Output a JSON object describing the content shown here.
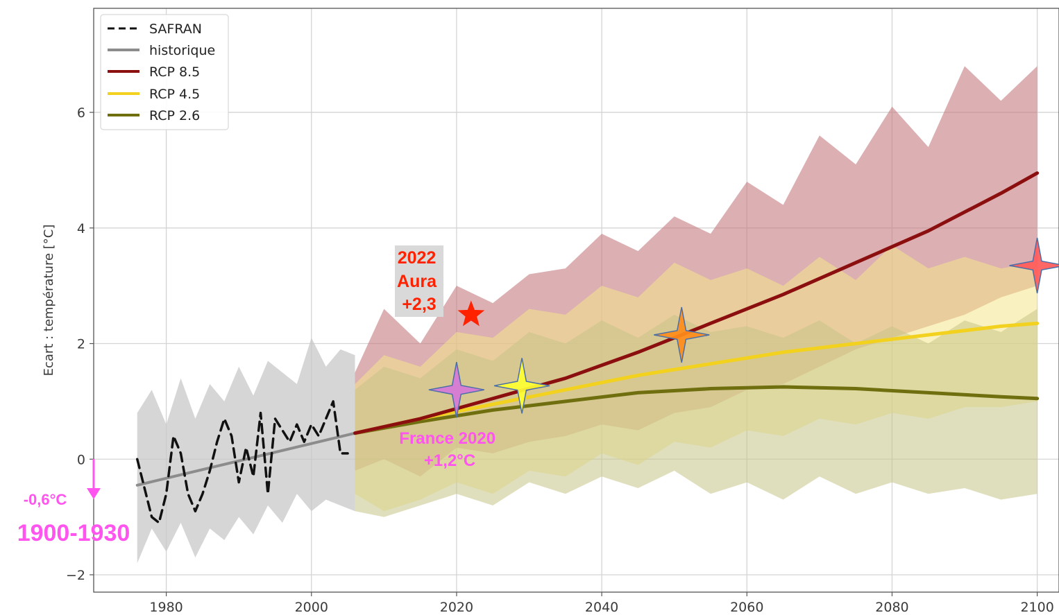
{
  "chart_data": {
    "type": "line",
    "title": "",
    "xlabel": "",
    "ylabel": "Ecart : température [°C]",
    "xlim": [
      1970,
      2103
    ],
    "ylim": [
      -2.3,
      7.8
    ],
    "x_ticks": [
      1980,
      2000,
      2020,
      2040,
      2060,
      2080,
      2100
    ],
    "y_ticks": [
      -2,
      0,
      2,
      4,
      6
    ],
    "x_tick_labels": [
      "1980",
      "2000",
      "2020",
      "2040",
      "2060",
      "2080",
      "2100"
    ],
    "y_tick_labels": [
      "−2",
      "0",
      "2",
      "4",
      "6"
    ],
    "grid": true,
    "legend_position": "top-left",
    "legend": [
      "SAFRAN",
      "historique",
      "RCP 8.5",
      "RCP 4.5",
      "RCP 2.6"
    ],
    "colors": {
      "safran": "#111111",
      "historique": "#8c8c8c",
      "rcp85": "#8b0f0f",
      "rcp45": "#f2d21e",
      "rcp26": "#6f6f10",
      "band_hist": "#c8c8c8",
      "band_85": "#c47a7e",
      "band_45": "#f4e58a",
      "band_26": "#c7c486",
      "annotation_magenta": "#ff55ee",
      "annotation_red": "#ff2200"
    },
    "series": [
      {
        "name": "SAFRAN",
        "style": "dashed",
        "x": [
          1976,
          1977,
          1978,
          1979,
          1980,
          1981,
          1982,
          1983,
          1984,
          1985,
          1986,
          1987,
          1988,
          1989,
          1990,
          1991,
          1992,
          1993,
          1994,
          1995,
          1996,
          1997,
          1998,
          1999,
          2000,
          2001,
          2002,
          2003,
          2004,
          2005
        ],
        "y": [
          0.0,
          -0.5,
          -1.0,
          -1.1,
          -0.6,
          0.4,
          0.1,
          -0.6,
          -0.9,
          -0.6,
          -0.2,
          0.3,
          0.7,
          0.4,
          -0.4,
          0.2,
          -0.3,
          0.8,
          -0.6,
          0.7,
          0.5,
          0.3,
          0.6,
          0.3,
          0.6,
          0.4,
          0.7,
          1.0,
          0.1,
          0.1
        ]
      },
      {
        "name": "historique",
        "x": [
          1976,
          2006
        ],
        "y": [
          -0.45,
          0.45
        ],
        "band_x": [
          1976,
          1978,
          1980,
          1982,
          1984,
          1986,
          1988,
          1990,
          1992,
          1994,
          1996,
          1998,
          2000,
          2002,
          2004,
          2006
        ],
        "band_upper": [
          0.8,
          1.2,
          0.6,
          1.4,
          0.7,
          1.3,
          1.0,
          1.6,
          1.1,
          1.7,
          1.5,
          1.3,
          2.1,
          1.6,
          1.9,
          1.8
        ],
        "band_lower": [
          -1.8,
          -1.2,
          -1.6,
          -1.1,
          -1.7,
          -1.2,
          -1.4,
          -1.0,
          -1.3,
          -0.8,
          -1.1,
          -0.6,
          -0.9,
          -0.7,
          -0.8,
          -0.9
        ]
      },
      {
        "name": "RCP 8.5",
        "x": [
          2006,
          2015,
          2025,
          2035,
          2045,
          2055,
          2065,
          2075,
          2085,
          2095,
          2100
        ],
        "y": [
          0.45,
          0.7,
          1.05,
          1.4,
          1.85,
          2.35,
          2.85,
          3.4,
          3.95,
          4.6,
          4.95
        ],
        "band_x": [
          2006,
          2010,
          2015,
          2020,
          2025,
          2030,
          2035,
          2040,
          2045,
          2050,
          2055,
          2060,
          2065,
          2070,
          2075,
          2080,
          2085,
          2090,
          2095,
          2100
        ],
        "band_upper": [
          1.5,
          2.6,
          2.0,
          3.0,
          2.7,
          3.2,
          3.3,
          3.9,
          3.6,
          4.2,
          3.9,
          4.8,
          4.4,
          5.6,
          5.1,
          6.1,
          5.4,
          6.8,
          6.2,
          6.8
        ],
        "band_lower": [
          -0.2,
          0.0,
          -0.3,
          0.2,
          0.1,
          0.3,
          0.4,
          0.6,
          0.5,
          0.8,
          0.9,
          1.2,
          1.3,
          1.6,
          1.9,
          2.1,
          2.3,
          2.5,
          2.8,
          3.0
        ]
      },
      {
        "name": "RCP 4.5",
        "x": [
          2006,
          2015,
          2025,
          2035,
          2045,
          2055,
          2065,
          2075,
          2085,
          2095,
          2100
        ],
        "y": [
          0.45,
          0.7,
          0.95,
          1.2,
          1.45,
          1.65,
          1.85,
          2.0,
          2.15,
          2.3,
          2.35
        ],
        "band_x": [
          2006,
          2010,
          2015,
          2020,
          2025,
          2030,
          2035,
          2040,
          2045,
          2050,
          2055,
          2060,
          2065,
          2070,
          2075,
          2080,
          2085,
          2090,
          2095,
          2100
        ],
        "band_upper": [
          1.3,
          1.8,
          1.6,
          2.2,
          2.1,
          2.6,
          2.5,
          3.0,
          2.8,
          3.4,
          3.1,
          3.3,
          3.0,
          3.5,
          3.1,
          3.7,
          3.3,
          3.5,
          3.3,
          3.4
        ],
        "band_lower": [
          -0.6,
          -0.9,
          -0.7,
          -0.4,
          -0.6,
          -0.2,
          -0.3,
          0.1,
          -0.1,
          0.3,
          0.2,
          0.5,
          0.4,
          0.7,
          0.6,
          0.8,
          0.7,
          0.9,
          0.9,
          1.0
        ]
      },
      {
        "name": "RCP 2.6",
        "x": [
          2006,
          2015,
          2025,
          2035,
          2045,
          2055,
          2065,
          2075,
          2085,
          2095,
          2100
        ],
        "y": [
          0.45,
          0.65,
          0.85,
          1.0,
          1.15,
          1.22,
          1.25,
          1.22,
          1.15,
          1.08,
          1.05
        ],
        "band_x": [
          2006,
          2010,
          2015,
          2020,
          2025,
          2030,
          2035,
          2040,
          2045,
          2050,
          2055,
          2060,
          2065,
          2070,
          2075,
          2080,
          2085,
          2090,
          2095,
          2100
        ],
        "band_upper": [
          1.2,
          1.6,
          1.4,
          1.9,
          1.7,
          2.2,
          2.0,
          2.4,
          2.1,
          2.5,
          2.2,
          2.3,
          2.1,
          2.4,
          2.0,
          2.3,
          2.0,
          2.4,
          2.2,
          2.6
        ],
        "band_lower": [
          -0.9,
          -1.0,
          -0.8,
          -0.6,
          -0.8,
          -0.4,
          -0.6,
          -0.3,
          -0.5,
          -0.2,
          -0.6,
          -0.4,
          -0.7,
          -0.3,
          -0.6,
          -0.4,
          -0.6,
          -0.5,
          -0.7,
          -0.6
        ]
      }
    ],
    "markers": [
      {
        "shape": "star5",
        "x": 2022,
        "y": 2.5,
        "color": "#ff2200"
      },
      {
        "shape": "star4",
        "x": 2020,
        "y": 1.2,
        "color": "#d678d8"
      },
      {
        "shape": "star4",
        "x": 2029,
        "y": 1.27,
        "color": "#ffff33"
      },
      {
        "shape": "star4",
        "x": 2051,
        "y": 2.15,
        "color": "#ff8c1a"
      },
      {
        "shape": "star4",
        "x": 2100,
        "y": 3.35,
        "color": "#ff5a5a"
      }
    ],
    "annotations": {
      "aura": [
        "2022",
        "Aura",
        "+2,3"
      ],
      "france": [
        "France 2020",
        "+1,2°C"
      ],
      "offset": "-0,6°C",
      "period": "1900-1930"
    }
  }
}
